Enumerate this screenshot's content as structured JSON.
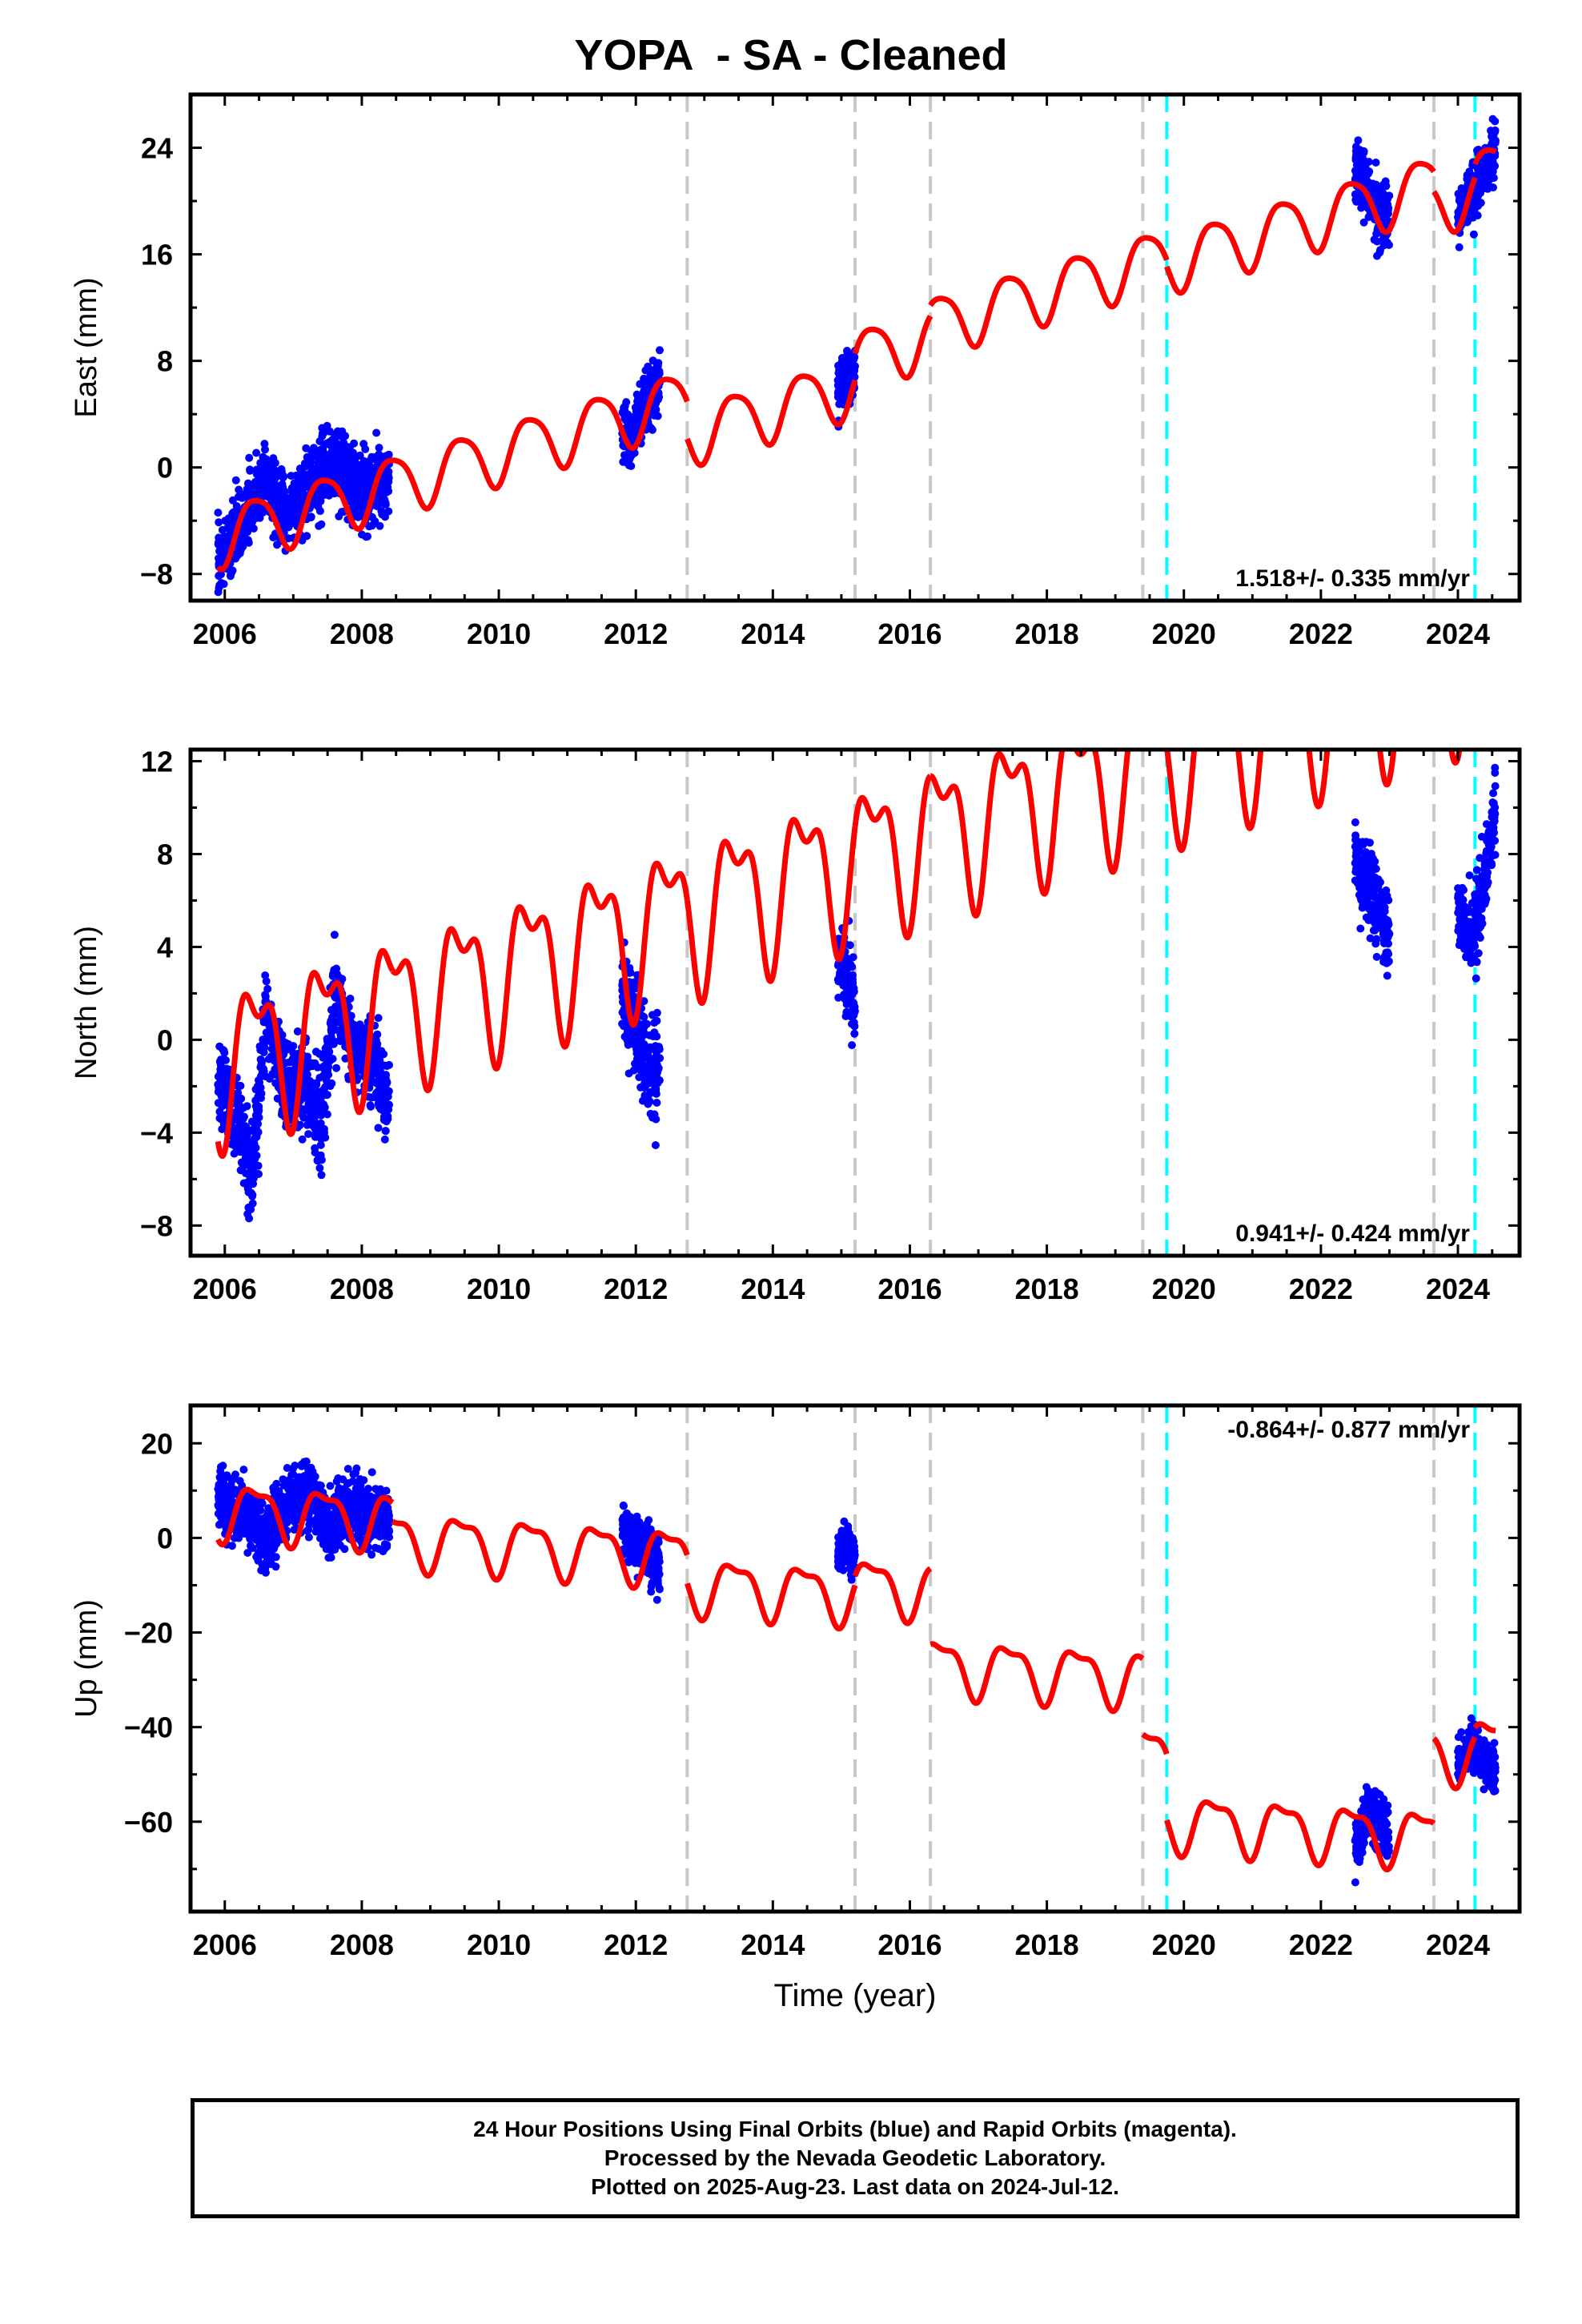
{
  "title": "YOPA  - SA - Cleaned",
  "colors": {
    "final_orbits": "#0000ff",
    "model": "#ff0000",
    "antenna_change": "#c8c8c8",
    "equipment_change": "#00ffff",
    "frame": "#000000"
  },
  "xlabel": "Time (year)",
  "footer": {
    "line1": "24 Hour Positions Using Final Orbits (blue) and Rapid Orbits (magenta).",
    "line2": "Processed by the Nevada Geodetic Laboratory.",
    "line3": "Plotted on 2025-Aug-23. Last data on 2024-Jul-12."
  },
  "chart_data": [
    {
      "type": "scatter",
      "component": "East",
      "ylabel": "East (mm)",
      "xlim": [
        2005.5,
        2024.9
      ],
      "ylim": [
        -10,
        28
      ],
      "xticks": [
        2006,
        2008,
        2010,
        2012,
        2014,
        2016,
        2018,
        2020,
        2022,
        2024
      ],
      "yticks": [
        -8,
        0,
        8,
        16,
        24
      ],
      "velocity_label": "1.518+/- 0.335 mm/yr",
      "velocity_label_position": "bottom-right",
      "gray_dashed_lines": [
        2012.75,
        2015.2,
        2016.3,
        2019.4
      ],
      "cyan_dashed_lines": [
        2019.75,
        2024.25
      ],
      "gray_dashed_lines_2": [
        2023.65
      ],
      "data_clusters": [
        {
          "start": 2005.9,
          "end": 2008.4,
          "center": [
            [
              2005.9,
              -7
            ],
            [
              2006.3,
              -4
            ],
            [
              2006.6,
              -1
            ],
            [
              2006.9,
              -4
            ],
            [
              2007.3,
              -1
            ],
            [
              2007.6,
              0.5
            ],
            [
              2008.0,
              -2
            ],
            [
              2008.4,
              -0.5
            ]
          ],
          "spread": 2.2
        },
        {
          "start": 2011.8,
          "end": 2012.35,
          "center": [
            [
              2011.8,
              3
            ],
            [
              2011.95,
              2
            ],
            [
              2012.1,
              4.5
            ],
            [
              2012.35,
              6.5
            ]
          ],
          "spread": 1.8
        },
        {
          "start": 2014.95,
          "end": 2015.2,
          "center": [
            [
              2014.95,
              6
            ],
            [
              2015.1,
              7
            ],
            [
              2015.2,
              7.5
            ]
          ],
          "spread": 1.5
        },
        {
          "start": 2022.5,
          "end": 2023.0,
          "center": [
            [
              2022.5,
              22
            ],
            [
              2022.7,
              21
            ],
            [
              2022.85,
              19
            ],
            [
              2023.0,
              18
            ]
          ],
          "spread": 2.0
        },
        {
          "start": 2024.0,
          "end": 2024.55,
          "center": [
            [
              2024.0,
              19
            ],
            [
              2024.2,
              20.5
            ],
            [
              2024.4,
              22
            ],
            [
              2024.55,
              24
            ]
          ],
          "spread": 1.8
        }
      ],
      "model": {
        "segments": [
          {
            "start": 2005.9,
            "end": 2012.75,
            "offset": 0.0
          },
          {
            "start": 2012.75,
            "end": 2015.2,
            "offset": -2.8
          },
          {
            "start": 2015.2,
            "end": 2016.3,
            "offset": -0.8
          },
          {
            "start": 2016.3,
            "end": 2019.4,
            "offset": 0.0
          },
          {
            "start": 2019.4,
            "end": 2019.75,
            "offset": 0.0
          },
          {
            "start": 2019.75,
            "end": 2023.65,
            "offset": -0.5
          },
          {
            "start": 2023.65,
            "end": 2024.25,
            "offset": -2.0
          },
          {
            "start": 2024.25,
            "end": 2024.55,
            "offset": -1.0
          }
        ],
        "base": -5.0,
        "rate": 1.518,
        "annual_amp": 2.2,
        "semiannual_amp": 0.4
      }
    },
    {
      "type": "scatter",
      "component": "North",
      "ylabel": "North (mm)",
      "xlim": [
        2005.5,
        2024.9
      ],
      "ylim": [
        -9.3,
        12.5
      ],
      "xticks": [
        2006,
        2008,
        2010,
        2012,
        2014,
        2016,
        2018,
        2020,
        2022,
        2024
      ],
      "yticks": [
        -8,
        -4,
        0,
        4,
        8,
        12
      ],
      "velocity_label": "0.941+/- 0.424 mm/yr",
      "velocity_label_position": "bottom-right",
      "gray_dashed_lines": [
        2012.75,
        2015.2,
        2016.3,
        2019.4
      ],
      "cyan_dashed_lines": [
        2019.75,
        2024.25
      ],
      "gray_dashed_lines_2": [
        2023.65
      ],
      "data_clusters": [
        {
          "start": 2005.9,
          "end": 2008.4,
          "center": [
            [
              2005.9,
              -1.5
            ],
            [
              2006.2,
              -3.5
            ],
            [
              2006.4,
              -6
            ],
            [
              2006.6,
              1
            ],
            [
              2006.9,
              -2
            ],
            [
              2007.2,
              -2
            ],
            [
              2007.4,
              -4
            ],
            [
              2007.6,
              2
            ],
            [
              2007.9,
              -0.5
            ],
            [
              2008.2,
              -1
            ],
            [
              2008.4,
              -3
            ]
          ],
          "spread": 1.5
        },
        {
          "start": 2011.8,
          "end": 2012.35,
          "center": [
            [
              2011.8,
              2
            ],
            [
              2012.0,
              0.5
            ],
            [
              2012.2,
              -1.5
            ],
            [
              2012.35,
              -1
            ]
          ],
          "spread": 1.8
        },
        {
          "start": 2014.95,
          "end": 2015.2,
          "center": [
            [
              2014.95,
              3.5
            ],
            [
              2015.1,
              2.5
            ],
            [
              2015.2,
              1.5
            ]
          ],
          "spread": 1.2
        },
        {
          "start": 2022.5,
          "end": 2023.0,
          "center": [
            [
              2022.5,
              8
            ],
            [
              2022.7,
              6.5
            ],
            [
              2022.85,
              5.5
            ],
            [
              2023.0,
              4.5
            ]
          ],
          "spread": 1.4
        },
        {
          "start": 2024.0,
          "end": 2024.55,
          "center": [
            [
              2024.0,
              6
            ],
            [
              2024.2,
              4
            ],
            [
              2024.4,
              7
            ],
            [
              2024.55,
              10
            ]
          ],
          "spread": 1.4
        }
      ],
      "model": {
        "segments": [
          {
            "start": 2005.9,
            "end": 2008.45,
            "offset": 0.0
          },
          {
            "start": 2008.45,
            "end": 2012.75,
            "offset": 0.0
          },
          {
            "start": 2012.75,
            "end": 2015.2,
            "offset": 0.0
          },
          {
            "start": 2015.2,
            "end": 2016.3,
            "offset": 0.0
          },
          {
            "start": 2016.3,
            "end": 2019.4,
            "offset": 0.0
          },
          {
            "start": 2019.4,
            "end": 2019.75,
            "offset": 0.0
          },
          {
            "start": 2019.75,
            "end": 2023.65,
            "offset": 0.0
          },
          {
            "start": 2023.65,
            "end": 2024.25,
            "offset": 0.0
          },
          {
            "start": 2024.25,
            "end": 2024.55,
            "offset": 0.0
          }
        ],
        "base": -0.8,
        "rate": 0.941,
        "annual_amp": 2.8,
        "semiannual_amp": 1.4
      }
    },
    {
      "type": "scatter",
      "component": "Up",
      "ylabel": "Up (mm)",
      "xlim": [
        2005.5,
        2024.9
      ],
      "ylim": [
        -79,
        28
      ],
      "xticks": [
        2006,
        2008,
        2010,
        2012,
        2014,
        2016,
        2018,
        2020,
        2022,
        2024
      ],
      "yticks": [
        -60,
        -40,
        -20,
        0,
        20
      ],
      "velocity_label": "-0.864+/- 0.877 mm/yr",
      "velocity_label_position": "top-right",
      "gray_dashed_lines": [
        2012.75,
        2015.2,
        2016.3,
        2019.4
      ],
      "cyan_dashed_lines": [
        2019.75,
        2024.25
      ],
      "gray_dashed_lines_2": [
        2023.65
      ],
      "data_clusters": [
        {
          "start": 2005.9,
          "end": 2008.4,
          "center": [
            [
              2005.9,
              8
            ],
            [
              2006.3,
              5
            ],
            [
              2006.6,
              0
            ],
            [
              2006.9,
              6
            ],
            [
              2007.2,
              10
            ],
            [
              2007.5,
              2
            ],
            [
              2007.8,
              6
            ],
            [
              2008.1,
              5
            ],
            [
              2008.4,
              4
            ]
          ],
          "spread": 5.5
        },
        {
          "start": 2011.8,
          "end": 2012.35,
          "center": [
            [
              2011.8,
              2
            ],
            [
              2012.0,
              -1
            ],
            [
              2012.2,
              -3
            ],
            [
              2012.35,
              -6
            ]
          ],
          "spread": 4.5
        },
        {
          "start": 2014.95,
          "end": 2015.2,
          "center": [
            [
              2014.95,
              -3
            ],
            [
              2015.1,
              -2
            ],
            [
              2015.2,
              -6
            ]
          ],
          "spread": 3.5
        },
        {
          "start": 2022.5,
          "end": 2023.0,
          "center": [
            [
              2022.5,
              -66
            ],
            [
              2022.7,
              -57
            ],
            [
              2022.85,
              -60
            ],
            [
              2023.0,
              -64
            ]
          ],
          "spread": 4.5
        },
        {
          "start": 2024.0,
          "end": 2024.55,
          "center": [
            [
              2024.0,
              -48
            ],
            [
              2024.2,
              -44
            ],
            [
              2024.4,
              -47
            ],
            [
              2024.55,
              -50
            ]
          ],
          "spread": 4.0
        }
      ],
      "model": {
        "segments": [
          {
            "start": 2005.9,
            "end": 2008.45,
            "offset": 0.0
          },
          {
            "start": 2008.45,
            "end": 2012.75,
            "offset": -4.0
          },
          {
            "start": 2012.75,
            "end": 2015.2,
            "offset": -10.0
          },
          {
            "start": 2015.2,
            "end": 2016.3,
            "offset": -8.0
          },
          {
            "start": 2016.3,
            "end": 2019.4,
            "offset": -24.0
          },
          {
            "start": 2019.4,
            "end": 2019.75,
            "offset": -40.0
          },
          {
            "start": 2019.75,
            "end": 2023.65,
            "offset": -54.0
          },
          {
            "start": 2023.65,
            "end": 2024.25,
            "offset": -36.0
          },
          {
            "start": 2024.25,
            "end": 2024.55,
            "offset": -34.0
          }
        ],
        "base": 6.0,
        "rate": -0.864,
        "annual_amp": 5.5,
        "semiannual_amp": 2.0
      }
    }
  ]
}
